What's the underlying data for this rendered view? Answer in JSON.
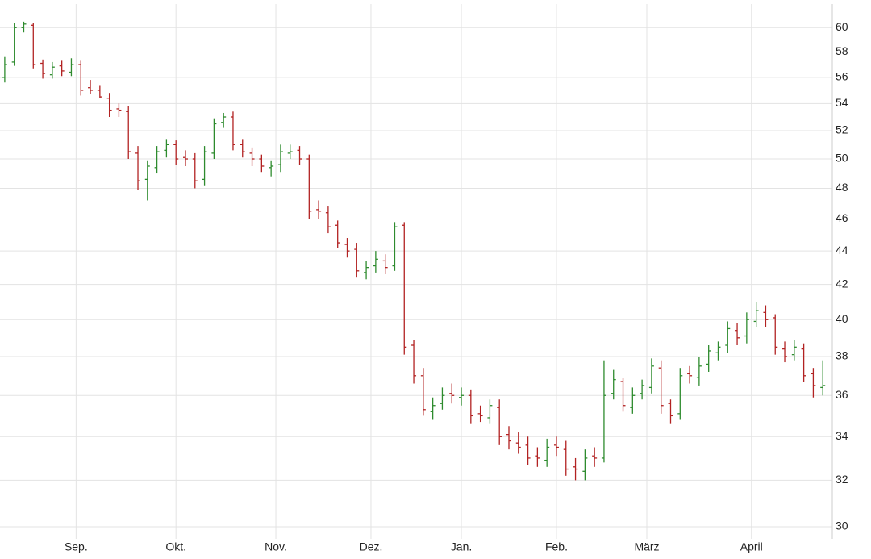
{
  "chart_data": {
    "type": "ohlc",
    "y_scale": "log",
    "grid": true,
    "up_color": "#2e8b2e",
    "down_color": "#b22222",
    "x": [
      1,
      3,
      5,
      7,
      9,
      11,
      13,
      15,
      17,
      19,
      21,
      23,
      25,
      27,
      29,
      31,
      33,
      35,
      37,
      39,
      41,
      43,
      45,
      47,
      49,
      51,
      53,
      55,
      57,
      59,
      61,
      63,
      65,
      67,
      69,
      71,
      73,
      75,
      77,
      79,
      81,
      83,
      85,
      87,
      89,
      91,
      93,
      95,
      97,
      99,
      101,
      103,
      105,
      107,
      109,
      111,
      113,
      115,
      117,
      119,
      121,
      123,
      125,
      127,
      129,
      131,
      133,
      135,
      137,
      139,
      141,
      143,
      145,
      147,
      149,
      151,
      153,
      155,
      157,
      159,
      161,
      163,
      165,
      167,
      169,
      171,
      173
    ],
    "open": [
      56,
      57.2,
      60,
      60.2,
      57.1,
      56.2,
      56.9,
      56.4,
      57,
      55.2,
      55,
      54.4,
      53.6,
      53.4,
      50.4,
      48.6,
      49.4,
      50.6,
      51,
      50.1,
      50,
      48.6,
      50.4,
      52.6,
      53,
      51,
      50.4,
      50,
      49.4,
      49.6,
      50.4,
      50.6,
      50,
      46.6,
      46.4,
      45.6,
      44.4,
      44.1,
      42.7,
      43.1,
      43.4,
      43.1,
      45.6,
      38.6,
      37,
      35.2,
      35.6,
      36.1,
      35.9,
      36,
      35.1,
      34.9,
      35.4,
      34.1,
      33.7,
      33.6,
      33.1,
      32.9,
      33.6,
      33.4,
      32.6,
      32.4,
      33.1,
      33,
      36.1,
      36.7,
      35.4,
      36.1,
      36.4,
      37.4,
      35.6,
      35.1,
      37.1,
      36.9,
      37.6,
      38.2,
      38.6,
      39.4,
      39.1,
      39.9,
      40.4,
      40.1,
      38.4,
      38.1,
      38.4,
      37.1,
      36.4
    ],
    "high": [
      57.6,
      60.4,
      60.5,
      60.4,
      57.4,
      57.2,
      57.3,
      57.5,
      57.3,
      55.8,
      55.4,
      54.8,
      54,
      53.8,
      50.9,
      49.9,
      50.9,
      51.4,
      51.3,
      50.6,
      50.4,
      50.9,
      52.9,
      53.3,
      53.4,
      51.4,
      50.8,
      50.3,
      49.9,
      51,
      51,
      50.9,
      50.3,
      47.2,
      46.8,
      45.9,
      44.8,
      44.5,
      43.4,
      44,
      43.8,
      45.8,
      45.8,
      38.9,
      37.4,
      35.9,
      36.4,
      36.6,
      36.4,
      36.3,
      35.5,
      35.8,
      35.8,
      34.5,
      34.2,
      34,
      33.5,
      33.9,
      34,
      33.8,
      33,
      33.4,
      33.5,
      37.8,
      37.3,
      36.9,
      36.4,
      36.8,
      37.9,
      37.8,
      35.8,
      37.4,
      37.5,
      38,
      38.6,
      38.8,
      39.9,
      39.8,
      40.4,
      41,
      40.8,
      40.3,
      38.8,
      38.9,
      38.7,
      37.4,
      37.8
    ],
    "low": [
      55.6,
      56.9,
      59.6,
      56.7,
      55.9,
      55.9,
      56.1,
      56.1,
      54.6,
      54.7,
      54.4,
      53,
      53,
      50,
      47.9,
      47.2,
      49,
      50.1,
      49.6,
      49.5,
      48,
      48.2,
      50,
      52.2,
      50.6,
      50.1,
      49.5,
      49.1,
      48.8,
      49.1,
      50,
      49.6,
      46,
      46,
      45.1,
      44.2,
      43.6,
      42.4,
      42.3,
      42.7,
      42.6,
      42.8,
      38.1,
      36.6,
      35,
      34.8,
      35.3,
      35.6,
      35.5,
      34.6,
      34.7,
      34.6,
      33.6,
      33.4,
      33.2,
      32.7,
      32.6,
      32.6,
      33.1,
      32.2,
      32,
      32,
      32.6,
      32.8,
      35.8,
      35.2,
      35.1,
      35.8,
      36.1,
      35.1,
      34.6,
      34.8,
      36.6,
      36.5,
      37.2,
      37.8,
      38.2,
      38.6,
      38.7,
      39.6,
      39.6,
      38.1,
      37.7,
      37.8,
      36.7,
      35.9,
      36
    ],
    "close": [
      57,
      60,
      60.3,
      57,
      56.3,
      56.8,
      56.5,
      57,
      55,
      55,
      54.5,
      53.5,
      53.5,
      50.5,
      48.5,
      49.5,
      50.5,
      51,
      50,
      50,
      48.5,
      50.5,
      52.5,
      53,
      51,
      50.5,
      50,
      49.5,
      49.5,
      50.5,
      50.5,
      50,
      46.5,
      46.5,
      45.5,
      44.5,
      44,
      42.8,
      43,
      43.5,
      43,
      45.5,
      38.5,
      37,
      35.3,
      35.5,
      36,
      36,
      36,
      35,
      35,
      35.5,
      34,
      33.8,
      33.5,
      33,
      33,
      33.5,
      33.5,
      32.5,
      32.5,
      33,
      33,
      36,
      36.8,
      35.5,
      36,
      36.5,
      37.5,
      35.5,
      35,
      37,
      37,
      37.5,
      38.3,
      38.5,
      39.5,
      39,
      40,
      40.5,
      40,
      38.5,
      38,
      38.5,
      37,
      36.5,
      36.5
    ],
    "xlim": [
      0,
      175
    ],
    "xticks": [
      {
        "value": 16,
        "label": "Sep."
      },
      {
        "value": 37,
        "label": "Okt."
      },
      {
        "value": 58,
        "label": "Nov."
      },
      {
        "value": 78,
        "label": "Dez."
      },
      {
        "value": 97,
        "label": "Jan."
      },
      {
        "value": 117,
        "label": "Feb."
      },
      {
        "value": 136,
        "label": "März"
      },
      {
        "value": 158,
        "label": "April"
      }
    ],
    "ylim": [
      29.5,
      62
    ],
    "yticks": [
      30,
      32,
      34,
      36,
      38,
      40,
      42,
      44,
      46,
      48,
      50,
      52,
      54,
      56,
      58,
      60
    ]
  }
}
